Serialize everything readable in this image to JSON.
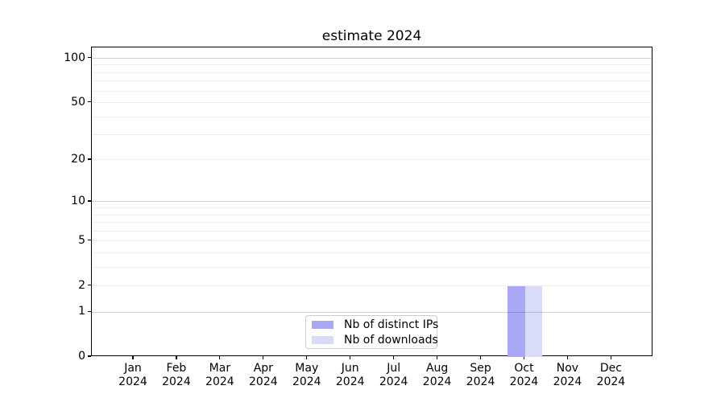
{
  "chart_data": {
    "type": "bar",
    "title": "estimate 2024",
    "y_scale": "log1p",
    "y_scale_note": "vertical position proportional to log10(1+value); 0 sits on the x-axis",
    "ylim": [
      0,
      118
    ],
    "y_ticks": [
      0,
      1,
      2,
      5,
      10,
      20,
      50,
      100
    ],
    "y_gridlines_major": [
      1,
      10,
      100
    ],
    "y_gridlines_minor": [
      2,
      3,
      4,
      5,
      6,
      7,
      8,
      9,
      20,
      30,
      40,
      50,
      60,
      70,
      80,
      90
    ],
    "x_tick_months": [
      "Jan",
      "Feb",
      "Mar",
      "Apr",
      "May",
      "Jun",
      "Jul",
      "Aug",
      "Sep",
      "Oct",
      "Nov",
      "Dec"
    ],
    "x_tick_year": "2024",
    "grid": {
      "major_color": "rgba(0,0,0,0.17)",
      "minor_color": "rgba(0,0,0,0.065)"
    },
    "series": [
      {
        "name": "Nb of distinct IPs",
        "color": "#a8a8f7",
        "values": [
          0,
          0,
          0,
          0,
          0,
          0,
          0,
          0,
          0,
          2,
          0,
          0
        ]
      },
      {
        "name": "Nb of downloads",
        "color": "#dadaf9",
        "values": [
          0,
          0,
          0,
          0,
          0,
          0,
          0,
          0,
          0,
          2,
          0,
          0
        ]
      }
    ],
    "legend": {
      "location": "inside-bottom-center",
      "labels": [
        "Nb of distinct IPs",
        "Nb of downloads"
      ]
    },
    "background_color": "#ffffff"
  }
}
